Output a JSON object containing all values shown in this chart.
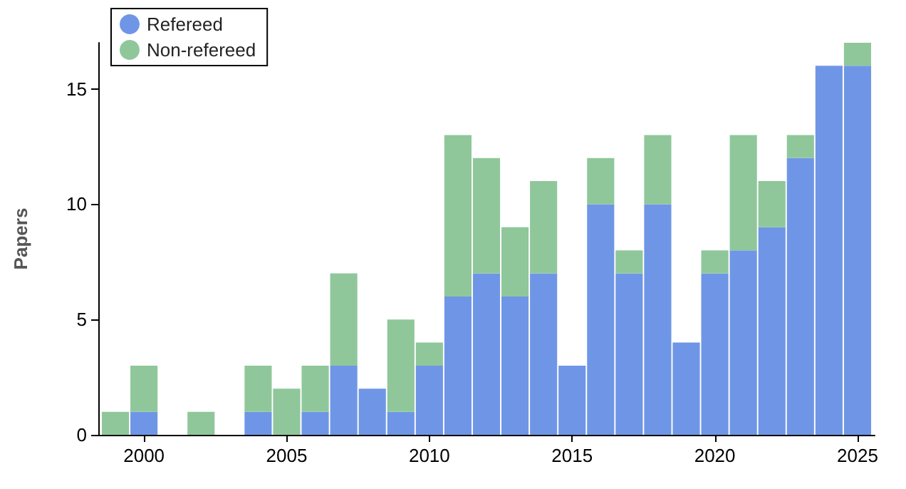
{
  "chart_data": {
    "type": "bar",
    "stacked": true,
    "ylabel": "Papers",
    "x": [
      1999,
      2000,
      2001,
      2002,
      2003,
      2004,
      2005,
      2006,
      2007,
      2008,
      2009,
      2010,
      2011,
      2012,
      2013,
      2014,
      2015,
      2016,
      2017,
      2018,
      2019,
      2020,
      2021,
      2022,
      2023,
      2024,
      2025
    ],
    "series": [
      {
        "name": "Refereed",
        "color": "#6f96e6",
        "values": [
          0,
          1,
          0,
          0,
          0,
          1,
          0,
          1,
          3,
          2,
          1,
          3,
          6,
          7,
          6,
          7,
          3,
          10,
          7,
          10,
          4,
          7,
          8,
          9,
          12,
          16,
          16
        ]
      },
      {
        "name": "Non-refereed",
        "color": "#8fc79a",
        "values": [
          1,
          2,
          0,
          1,
          0,
          2,
          2,
          2,
          4,
          0,
          4,
          1,
          7,
          5,
          3,
          4,
          0,
          2,
          1,
          3,
          0,
          1,
          5,
          2,
          1,
          0,
          1
        ]
      }
    ],
    "xlim": [
      1998.4,
      2025.6
    ],
    "xticks": [
      2000,
      2005,
      2010,
      2015,
      2020,
      2025
    ],
    "ylim": [
      0,
      17
    ],
    "yticks": [
      0,
      5,
      10,
      15
    ],
    "grid": false,
    "legend": "top left"
  }
}
